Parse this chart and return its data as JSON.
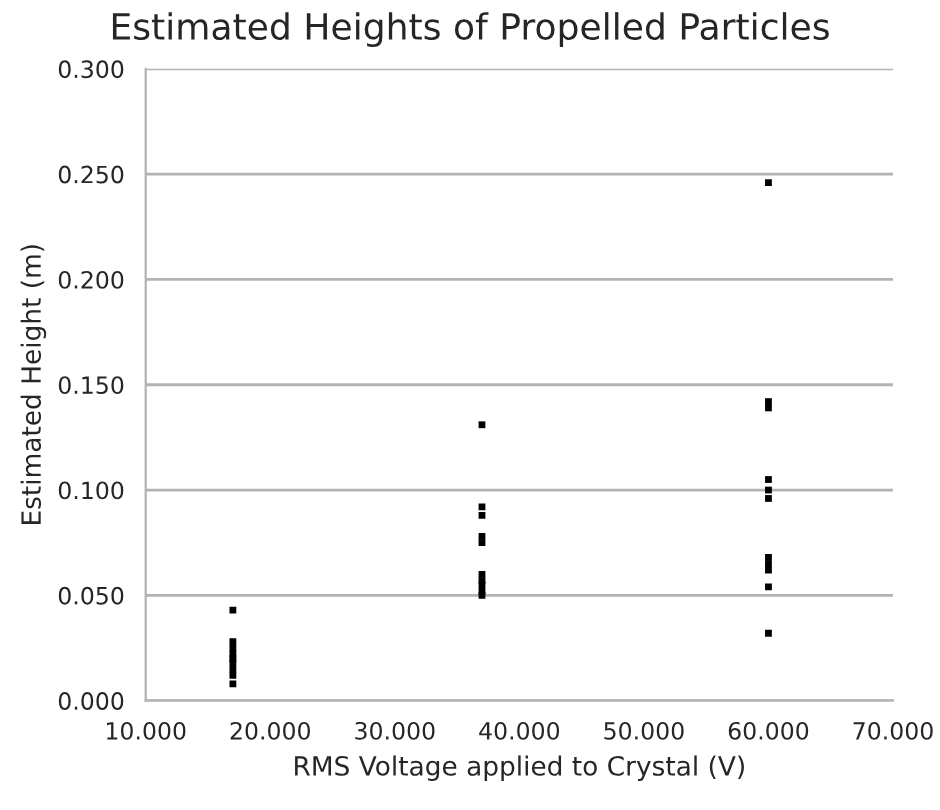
{
  "chart_data": {
    "type": "scatter",
    "title": "Estimated Heights of Propelled Particles",
    "xlabel": "RMS Voltage applied to Crystal (V)",
    "ylabel": "Estimated Height (m)",
    "x": [
      17,
      17,
      17,
      17,
      17,
      17,
      17,
      17,
      17,
      37,
      37,
      37,
      37,
      37,
      37,
      37,
      37,
      37,
      37,
      60,
      60,
      60,
      60,
      60,
      60,
      60,
      60,
      60,
      60,
      60
    ],
    "series": [
      {
        "color": "#000000",
        "values": [
          0.043,
          0.028,
          0.025,
          0.022,
          0.02,
          0.018,
          0.015,
          0.012,
          0.008,
          0.131,
          0.092,
          0.088,
          0.078,
          0.075,
          0.06,
          0.057,
          0.055,
          0.052,
          0.05,
          0.246,
          0.142,
          0.139,
          0.105,
          0.1,
          0.096,
          0.068,
          0.065,
          0.062,
          0.054,
          0.032
        ]
      }
    ],
    "xlim": [
      10,
      70
    ],
    "ylim": [
      0,
      0.3
    ],
    "xticks": [
      {
        "value": 10,
        "label": "10.000"
      },
      {
        "value": 20,
        "label": "20.000"
      },
      {
        "value": 30,
        "label": "30.000"
      },
      {
        "value": 40,
        "label": "40.000"
      },
      {
        "value": 50,
        "label": "50.000"
      },
      {
        "value": 60,
        "label": "60.000"
      },
      {
        "value": 70,
        "label": "70.000"
      }
    ],
    "yticks": [
      {
        "value": 0,
        "label": "0.000"
      },
      {
        "value": 0.05,
        "label": "0.050"
      },
      {
        "value": 0.1,
        "label": "0.100"
      },
      {
        "value": 0.15,
        "label": "0.150"
      },
      {
        "value": 0.2,
        "label": "0.200"
      },
      {
        "value": 0.25,
        "label": "0.250"
      },
      {
        "value": 0.3,
        "label": "0.300"
      }
    ],
    "grid": "y",
    "marker": "square"
  }
}
